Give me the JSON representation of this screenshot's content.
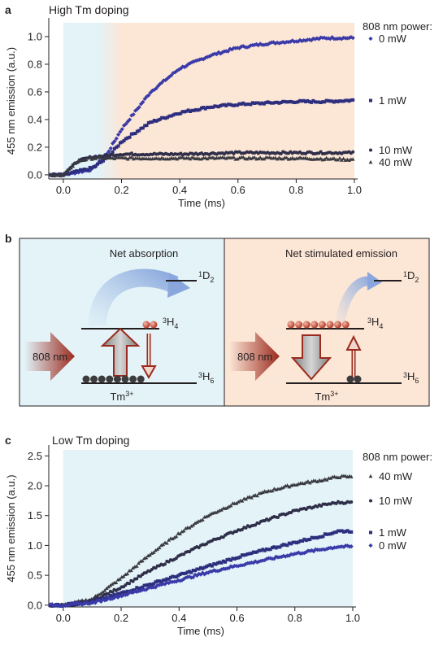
{
  "panels": {
    "a": "a",
    "b": "b",
    "c": "c"
  },
  "colors": {
    "series_0mW": "#3a3aa8",
    "series_1mW": "#2e2e7e",
    "series_10mW": "#2f2f4a",
    "series_40mW": "#3a3a42",
    "bg_blue": "#e3f3f8",
    "bg_orange": "#fce6d6",
    "arrow_red": "#9b2b1f",
    "ion_red": "#c0392b",
    "ion_dark": "#3c3c3c"
  },
  "diagram": {
    "left": {
      "title": "Net absorption",
      "pump": "808 nm",
      "levels": {
        "top": "1D2",
        "mid": "3H4",
        "ground": "3H6"
      },
      "ion": "Tm3+"
    },
    "right": {
      "title": "Net stimulated emission",
      "pump": "808 nm",
      "levels": {
        "top": "1D2",
        "mid": "3H4",
        "ground": "3H6"
      },
      "ion": "Tm3+"
    }
  },
  "chart_data": [
    {
      "type": "scatter",
      "title": "High Tm doping",
      "xlabel": "Time (ms)",
      "ylabel": "455 nm emission (a.u.)",
      "xlim": [
        -0.05,
        1.0
      ],
      "ylim": [
        -0.03,
        1.1
      ],
      "xticks": [
        "0.0",
        "0.2",
        "0.4",
        "0.6",
        "0.8",
        "1.0"
      ],
      "yticks": [
        "0.0",
        "0.2",
        "0.4",
        "0.6",
        "0.8",
        "1.0"
      ],
      "legend_title": "808 nm power:",
      "legend_placement": "right",
      "shading": [
        {
          "from": 0.0,
          "to": 0.2,
          "region": "blue"
        },
        {
          "from": 0.2,
          "to": 1.0,
          "region": "orange"
        }
      ],
      "series": [
        {
          "name": "0 mW",
          "marker": "diamond",
          "x": [
            0,
            0.1,
            0.15,
            0.2,
            0.3,
            0.4,
            0.5,
            0.6,
            0.7,
            0.8,
            0.9,
            1.0
          ],
          "y": [
            0.0,
            0.04,
            0.15,
            0.33,
            0.6,
            0.77,
            0.86,
            0.92,
            0.95,
            0.97,
            0.99,
            0.99
          ]
        },
        {
          "name": "1 mW",
          "marker": "square",
          "x": [
            0,
            0.1,
            0.15,
            0.2,
            0.3,
            0.4,
            0.5,
            0.6,
            0.7,
            0.8,
            0.9,
            1.0
          ],
          "y": [
            0.0,
            0.05,
            0.12,
            0.24,
            0.38,
            0.45,
            0.49,
            0.51,
            0.52,
            0.53,
            0.53,
            0.54
          ]
        },
        {
          "name": "10 mW",
          "marker": "circle",
          "x": [
            0,
            0.05,
            0.1,
            0.15,
            0.2,
            0.4,
            0.6,
            0.8,
            1.0
          ],
          "y": [
            0.0,
            0.1,
            0.13,
            0.14,
            0.15,
            0.15,
            0.16,
            0.16,
            0.16
          ]
        },
        {
          "name": "40 mW",
          "marker": "triangle",
          "x": [
            0,
            0.05,
            0.1,
            0.15,
            0.2,
            0.4,
            0.6,
            0.8,
            1.0
          ],
          "y": [
            0.0,
            0.1,
            0.12,
            0.12,
            0.12,
            0.12,
            0.12,
            0.12,
            0.11
          ]
        }
      ]
    },
    {
      "type": "scatter",
      "title": "Low Tm doping",
      "xlabel": "Time (ms)",
      "ylabel": "455 nm emission (a.u.)",
      "xlim": [
        -0.05,
        1.0
      ],
      "ylim": [
        -0.03,
        2.6
      ],
      "xticks": [
        "0.0",
        "0.2",
        "0.4",
        "0.6",
        "0.8",
        "1.0"
      ],
      "yticks": [
        "0.0",
        "0.5",
        "1.0",
        "1.5",
        "2.0",
        "2.5"
      ],
      "legend_title": "808 nm power:",
      "legend_placement": "right",
      "shading": [
        {
          "from": 0.0,
          "to": 1.0,
          "region": "blue"
        }
      ],
      "series": [
        {
          "name": "40 mW",
          "marker": "triangle",
          "x": [
            0,
            0.1,
            0.2,
            0.3,
            0.4,
            0.5,
            0.6,
            0.7,
            0.8,
            0.9,
            0.95
          ],
          "y": [
            0.0,
            0.1,
            0.45,
            0.85,
            1.2,
            1.5,
            1.72,
            1.9,
            2.02,
            2.1,
            2.15
          ]
        },
        {
          "name": "10 mW",
          "marker": "circle",
          "x": [
            0,
            0.1,
            0.2,
            0.3,
            0.4,
            0.5,
            0.6,
            0.7,
            0.8,
            0.9,
            0.95
          ],
          "y": [
            0.0,
            0.07,
            0.3,
            0.58,
            0.82,
            1.05,
            1.25,
            1.42,
            1.58,
            1.68,
            1.72
          ]
        },
        {
          "name": "1 mW",
          "marker": "square",
          "x": [
            0,
            0.1,
            0.2,
            0.3,
            0.4,
            0.5,
            0.6,
            0.7,
            0.8,
            0.9,
            0.95
          ],
          "y": [
            0.0,
            0.05,
            0.2,
            0.35,
            0.5,
            0.65,
            0.8,
            0.93,
            1.05,
            1.17,
            1.24
          ]
        },
        {
          "name": "0 mW",
          "marker": "diamond",
          "x": [
            0,
            0.1,
            0.2,
            0.3,
            0.4,
            0.5,
            0.6,
            0.7,
            0.8,
            0.9,
            0.95
          ],
          "y": [
            0.0,
            0.04,
            0.16,
            0.29,
            0.42,
            0.55,
            0.66,
            0.76,
            0.86,
            0.94,
            0.98
          ]
        }
      ]
    }
  ]
}
